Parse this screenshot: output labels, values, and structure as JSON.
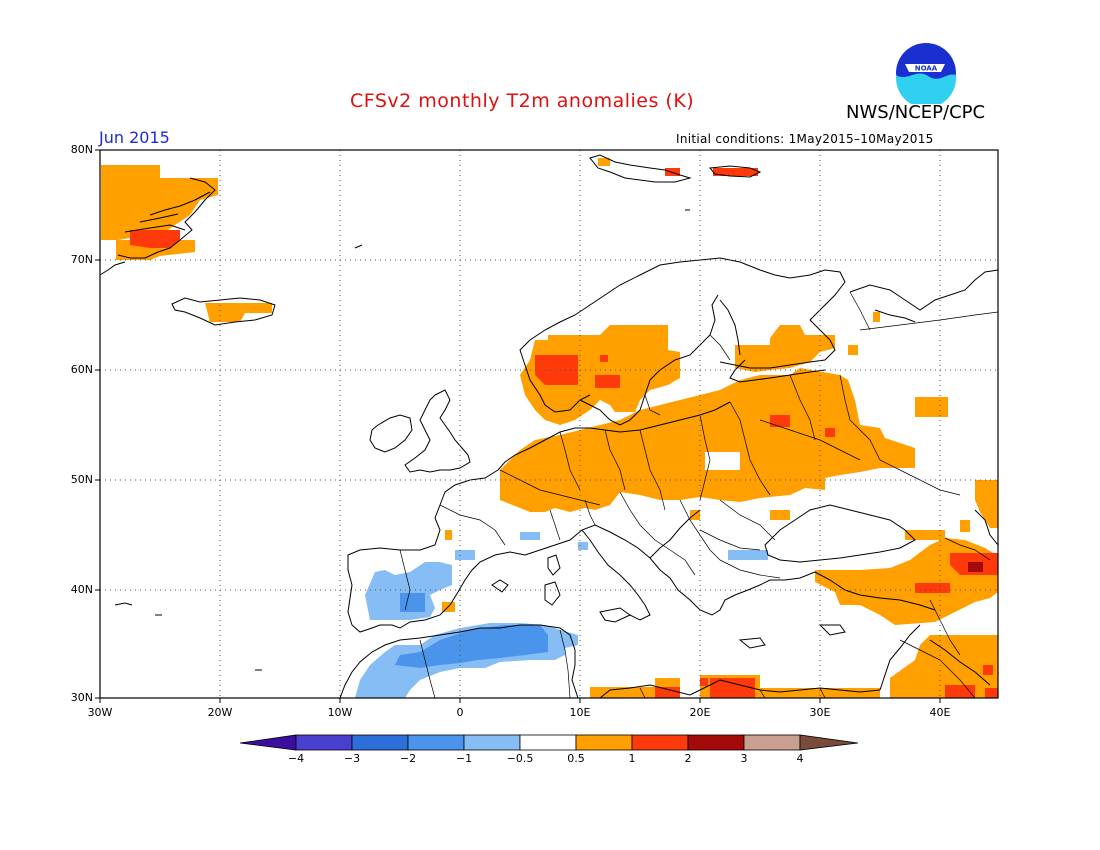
{
  "header": {
    "title": "CFSv2 monthly T2m anomalies (K)",
    "agency": "NWS/NCEP/CPC",
    "month": "Jun 2015",
    "initial_conditions": "Initial conditions: 1May2015–10May2015",
    "logo_text": "NOAA"
  },
  "map": {
    "projection": "lat-lon",
    "lon_range": [
      -30,
      45
    ],
    "lat_range": [
      30,
      80
    ],
    "grid": "dotted",
    "lat_ticks": [
      "80N",
      "70N",
      "60N",
      "50N",
      "40N",
      "30N"
    ],
    "lon_ticks": [
      "30W",
      "20W",
      "10W",
      "0",
      "10E",
      "20E",
      "30E",
      "40E"
    ]
  },
  "colorbar": {
    "labels": [
      "−4",
      "−3",
      "−2",
      "−1",
      "−0.5",
      "0.5",
      "1",
      "2",
      "3",
      "4"
    ],
    "colors": [
      "#3a0fa0",
      "#4a3fcf",
      "#2d6fd8",
      "#4a94ec",
      "#86bdf4",
      "#ffffff",
      "#ff9f00",
      "#ff3a0a",
      "#a50a0a",
      "#c9a08f",
      "#7a4a3a"
    ]
  },
  "anomaly_colors": {
    "warm1": "#ff9f00",
    "warm2": "#ff3a0a",
    "warm3": "#a50a0a",
    "cool1": "#86bdf4",
    "cool2": "#4a94ec"
  }
}
